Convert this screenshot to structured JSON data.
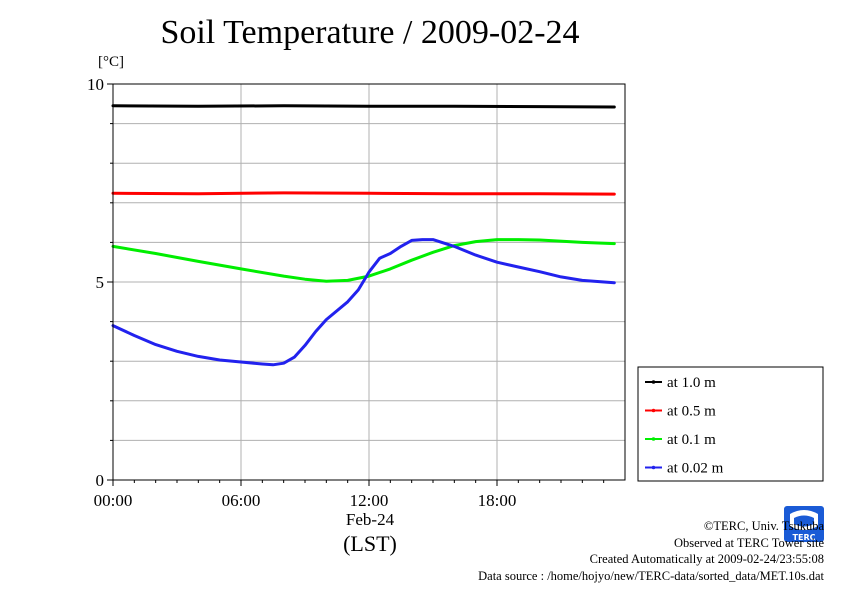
{
  "title": "Soil Temperature / 2009-02-24",
  "chart_data": {
    "type": "line",
    "title": "Soil Temperature / 2009-02-24",
    "ylabel": "[°C]",
    "ylim": [
      0,
      10
    ],
    "yticks": [
      0,
      5,
      10
    ],
    "ytick_labels": [
      "0",
      "5",
      "10"
    ],
    "xlim": [
      0,
      24
    ],
    "xticks": [
      0,
      6,
      12,
      18
    ],
    "xtick_labels": [
      "00:00",
      "06:00",
      "12:00",
      "18:00"
    ],
    "xlabel_date": "Feb-24",
    "xlabel_tz": "(LST)",
    "grid": true,
    "legend_position": "right",
    "series": [
      {
        "name": "at 1.0 m",
        "color": "#000000",
        "x": [
          0,
          4,
          8,
          12,
          16,
          20,
          23.5
        ],
        "y": [
          9.45,
          9.44,
          9.45,
          9.44,
          9.44,
          9.43,
          9.42
        ]
      },
      {
        "name": "at 0.5 m",
        "color": "#ff0000",
        "x": [
          0,
          4,
          8,
          12,
          16,
          20,
          23.5
        ],
        "y": [
          7.24,
          7.23,
          7.25,
          7.24,
          7.23,
          7.23,
          7.22
        ]
      },
      {
        "name": "at 0.1 m",
        "color": "#00ee00",
        "x": [
          0,
          2,
          4,
          6,
          8,
          9,
          10,
          11,
          12,
          13,
          14,
          15,
          16,
          17,
          18,
          19,
          20,
          22,
          23.5
        ],
        "y": [
          5.9,
          5.72,
          5.52,
          5.33,
          5.15,
          5.07,
          5.02,
          5.04,
          5.15,
          5.33,
          5.55,
          5.75,
          5.92,
          6.02,
          6.07,
          6.07,
          6.06,
          6.0,
          5.97
        ]
      },
      {
        "name": "at 0.02 m",
        "color": "#2222ee",
        "x": [
          0,
          1,
          2,
          3,
          4,
          5,
          6,
          7,
          7.5,
          8,
          8.5,
          9,
          9.5,
          10,
          11,
          11.5,
          12,
          12.5,
          13,
          13.5,
          14,
          14.5,
          15,
          16,
          17,
          18,
          19,
          20,
          21,
          22,
          23.5
        ],
        "y": [
          3.9,
          3.65,
          3.42,
          3.25,
          3.12,
          3.03,
          2.98,
          2.93,
          2.91,
          2.95,
          3.1,
          3.4,
          3.75,
          4.05,
          4.5,
          4.8,
          5.25,
          5.6,
          5.72,
          5.9,
          6.05,
          6.07,
          6.07,
          5.9,
          5.68,
          5.5,
          5.38,
          5.26,
          5.13,
          5.04,
          4.98
        ]
      }
    ]
  },
  "credits": {
    "copyright": "©TERC, Univ. Tsukuba",
    "observed": "Observed at TERC Tower site",
    "created": "Created Automatically at 2009-02-24/23:55:08",
    "source": "Data source : /home/hojyo/new/TERC-data/sorted_data/MET.10s.dat"
  },
  "logo": {
    "text": "TERC"
  }
}
